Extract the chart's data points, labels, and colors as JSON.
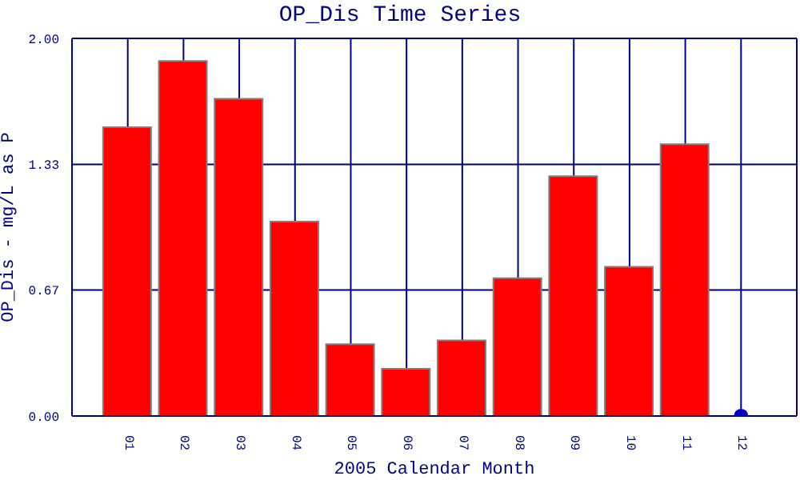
{
  "chart_data": {
    "type": "bar",
    "title": "OP_Dis Time Series",
    "xlabel": "2005 Calendar Month",
    "ylabel": "OP_Dis - mg/L as P",
    "categories": [
      "01",
      "02",
      "03",
      "04",
      "05",
      "06",
      "07",
      "08",
      "09",
      "10",
      "11",
      "12"
    ],
    "series": [
      {
        "color": "#ff0000",
        "values": [
          1.53,
          1.88,
          1.68,
          1.03,
          0.38,
          0.25,
          0.4,
          0.73,
          1.27,
          0.79,
          1.44,
          null
        ]
      },
      {
        "type": "scatter",
        "color": "#0000cc",
        "x": [
          "12"
        ],
        "values": [
          0
        ],
        "marker": "circle"
      }
    ],
    "ylim": [
      0,
      2
    ],
    "yticks": [
      {
        "value": 0,
        "label": "0.00"
      },
      {
        "value": 0.667,
        "label": "0.67"
      },
      {
        "value": 1.333,
        "label": "1.33"
      },
      {
        "value": 2,
        "label": "2.00"
      }
    ],
    "grid": true
  }
}
